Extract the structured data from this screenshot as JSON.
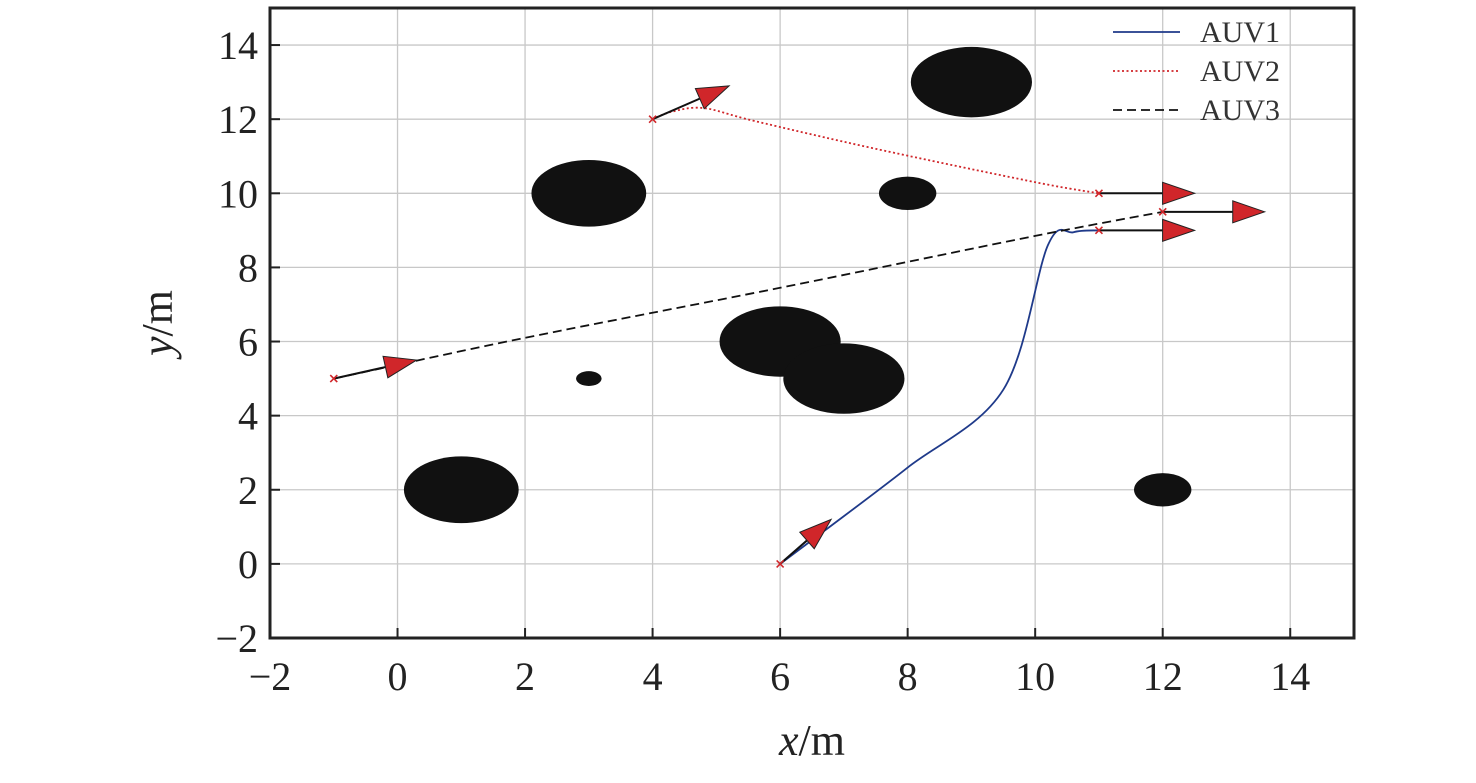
{
  "chart_data": {
    "type": "scatter",
    "xlabel": {
      "var": "x",
      "unit": "/m"
    },
    "ylabel": {
      "var": "y",
      "unit": "/m"
    },
    "xlim": [
      -2,
      15
    ],
    "ylim": [
      -2,
      15
    ],
    "xticks": [
      -2,
      0,
      2,
      4,
      6,
      8,
      10,
      12,
      14
    ],
    "yticks": [
      -2,
      0,
      2,
      4,
      6,
      8,
      10,
      12,
      14
    ],
    "xtick_labels": [
      "−2",
      "0",
      "2",
      "4",
      "6",
      "8",
      "10",
      "12",
      "14"
    ],
    "ytick_labels": [
      "−2",
      "0",
      "2",
      "4",
      "6",
      "8",
      "10",
      "12",
      "14"
    ],
    "grid": true,
    "legend_position": "top-right",
    "series": [
      {
        "name": "AUV1",
        "color": "#1f3a8a",
        "line_style": "solid",
        "points": [
          [
            6,
            0
          ],
          [
            6.7,
            0.9
          ],
          [
            8,
            2.6
          ],
          [
            9.5,
            4.7
          ],
          [
            10.2,
            8.6
          ],
          [
            10.6,
            8.95
          ],
          [
            11,
            9
          ]
        ],
        "start": [
          6,
          0
        ],
        "goal": [
          11,
          9
        ]
      },
      {
        "name": "AUV2",
        "color": "#d0262a",
        "line_style": "dotted",
        "points": [
          [
            4,
            12
          ],
          [
            4.3,
            12.2
          ],
          [
            4.8,
            12.3
          ],
          [
            5.6,
            11.95
          ],
          [
            7.5,
            11.2
          ],
          [
            10,
            10.3
          ],
          [
            11,
            10
          ]
        ],
        "start": [
          4,
          12
        ],
        "goal": [
          11,
          10
        ]
      },
      {
        "name": "AUV3",
        "color": "#111111",
        "line_style": "dashed",
        "points": [
          [
            -1,
            5
          ],
          [
            2,
            6.1
          ],
          [
            6,
            7.45
          ],
          [
            10,
            8.85
          ],
          [
            12,
            9.5
          ]
        ],
        "start": [
          -1,
          5
        ],
        "goal": [
          12,
          9.5
        ]
      }
    ],
    "obstacles": [
      {
        "x": 1,
        "y": 2,
        "r": 0.9
      },
      {
        "x": 3,
        "y": 10,
        "r": 0.9
      },
      {
        "x": 3,
        "y": 5,
        "r": 0.2
      },
      {
        "x": 6,
        "y": 6,
        "r": 0.95
      },
      {
        "x": 7,
        "y": 5,
        "r": 0.95
      },
      {
        "x": 8,
        "y": 10,
        "r": 0.45
      },
      {
        "x": 9,
        "y": 13,
        "r": 0.95
      },
      {
        "x": 12,
        "y": 2,
        "r": 0.45
      }
    ],
    "heading_arrows": [
      {
        "from": [
          6,
          0
        ],
        "to": [
          6.8,
          1.2
        ]
      },
      {
        "from": [
          4,
          12
        ],
        "to": [
          5.2,
          12.9
        ]
      },
      {
        "from": [
          -1,
          5
        ],
        "to": [
          0.3,
          5.5
        ]
      },
      {
        "from": [
          11,
          10
        ],
        "to": [
          12.5,
          10
        ]
      },
      {
        "from": [
          11,
          9
        ],
        "to": [
          12.5,
          9
        ]
      },
      {
        "from": [
          12,
          9.5
        ],
        "to": [
          13.6,
          9.5
        ]
      }
    ],
    "colors": {
      "obstacle": "#111111",
      "arrowhead": "#d0262a",
      "marker": "#d0262a",
      "grid": "#c8c8c8",
      "axis": "#222222"
    }
  }
}
